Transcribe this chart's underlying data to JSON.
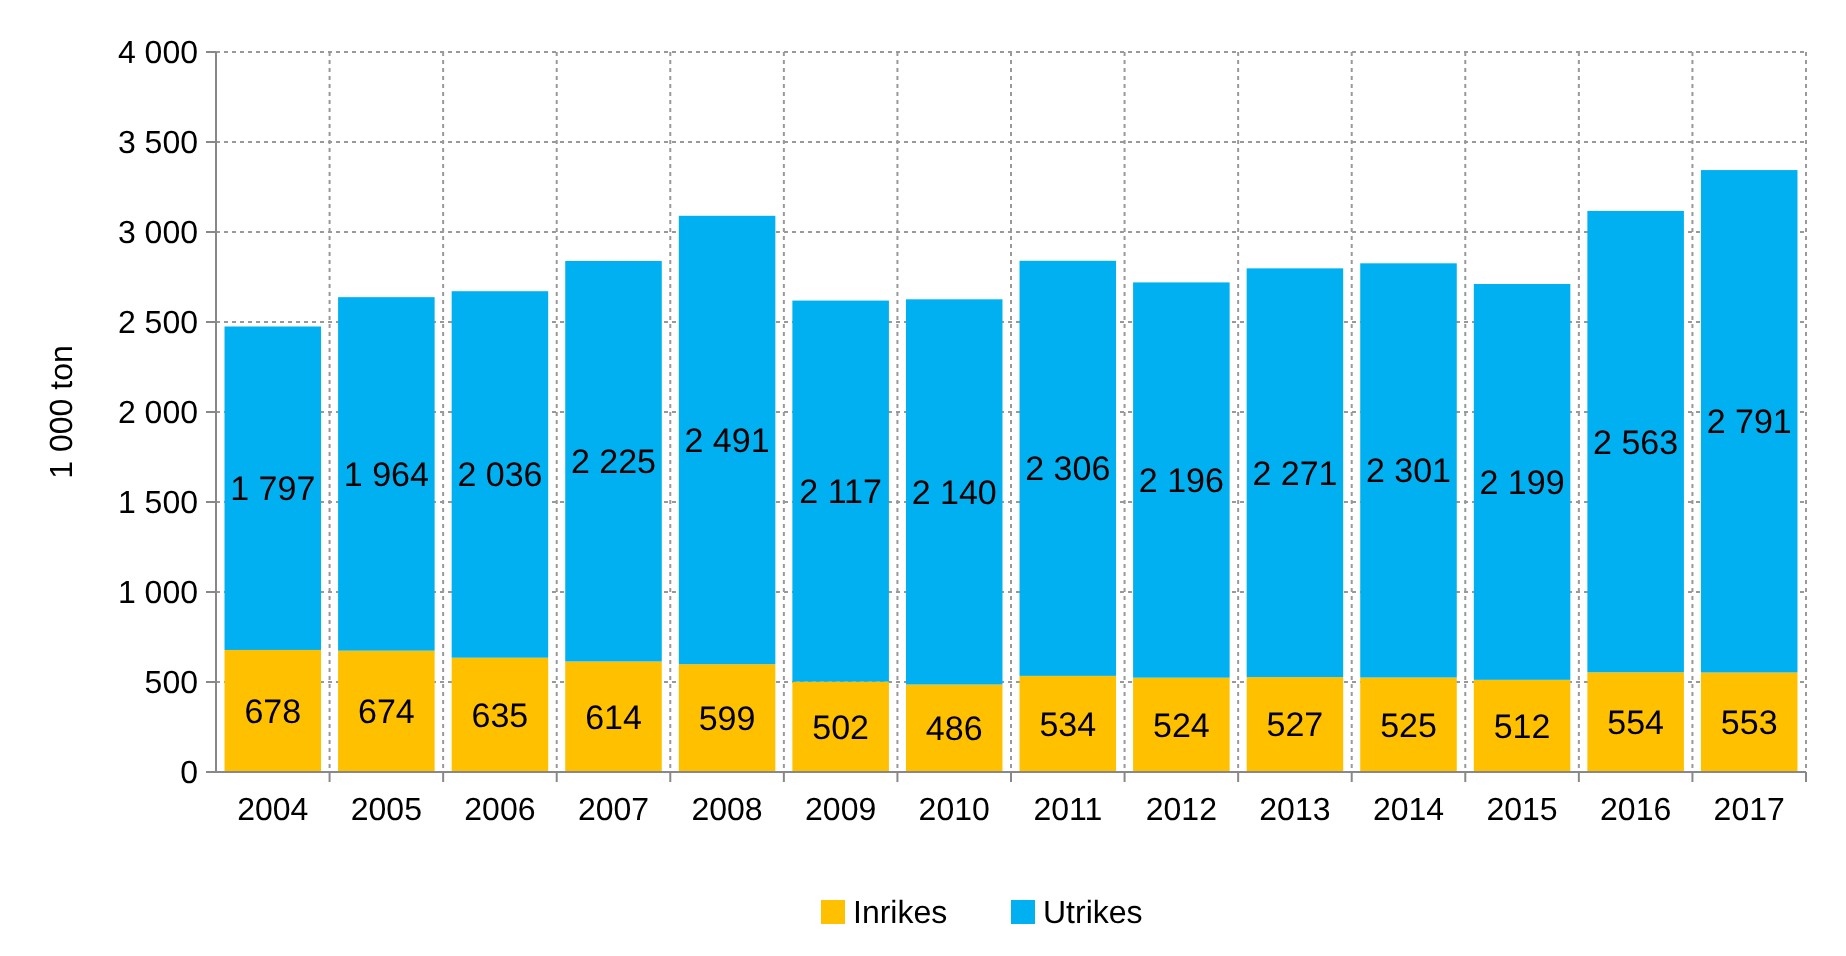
{
  "chart_data": {
    "type": "bar",
    "stacked": true,
    "ylabel": "1 000 ton",
    "categories": [
      "2004",
      "2005",
      "2006",
      "2007",
      "2008",
      "2009",
      "2010",
      "2011",
      "2012",
      "2013",
      "2014",
      "2015",
      "2016",
      "2017"
    ],
    "series": [
      {
        "name": "Inrikes",
        "color": "#ffc000",
        "values": [
          678,
          674,
          635,
          614,
          599,
          502,
          486,
          534,
          524,
          527,
          525,
          512,
          554,
          553
        ],
        "value_labels": [
          "678",
          "674",
          "635",
          "614",
          "599",
          "502",
          "486",
          "534",
          "524",
          "527",
          "525",
          "512",
          "554",
          "553"
        ]
      },
      {
        "name": "Utrikes",
        "color": "#00b0f0",
        "values": [
          1797,
          1964,
          2036,
          2225,
          2491,
          2117,
          2140,
          2306,
          2196,
          2271,
          2301,
          2199,
          2563,
          2791
        ],
        "value_labels": [
          "1 797",
          "1 964",
          "2 036",
          "2 225",
          "2 491",
          "2 117",
          "2 140",
          "2 306",
          "2 196",
          "2 271",
          "2 301",
          "2 199",
          "2 563",
          "2 791"
        ]
      }
    ],
    "ylim": [
      0,
      4000
    ],
    "yticks": [
      {
        "value": 0,
        "label": "0"
      },
      {
        "value": 500,
        "label": "500"
      },
      {
        "value": 1000,
        "label": "1 000"
      },
      {
        "value": 1500,
        "label": "1 500"
      },
      {
        "value": 2000,
        "label": "2 000"
      },
      {
        "value": 2500,
        "label": "2 500"
      },
      {
        "value": 3000,
        "label": "3 000"
      },
      {
        "value": 3500,
        "label": "3 500"
      },
      {
        "value": 4000,
        "label": "4 000"
      }
    ],
    "grid": true,
    "legend": "bottom"
  }
}
